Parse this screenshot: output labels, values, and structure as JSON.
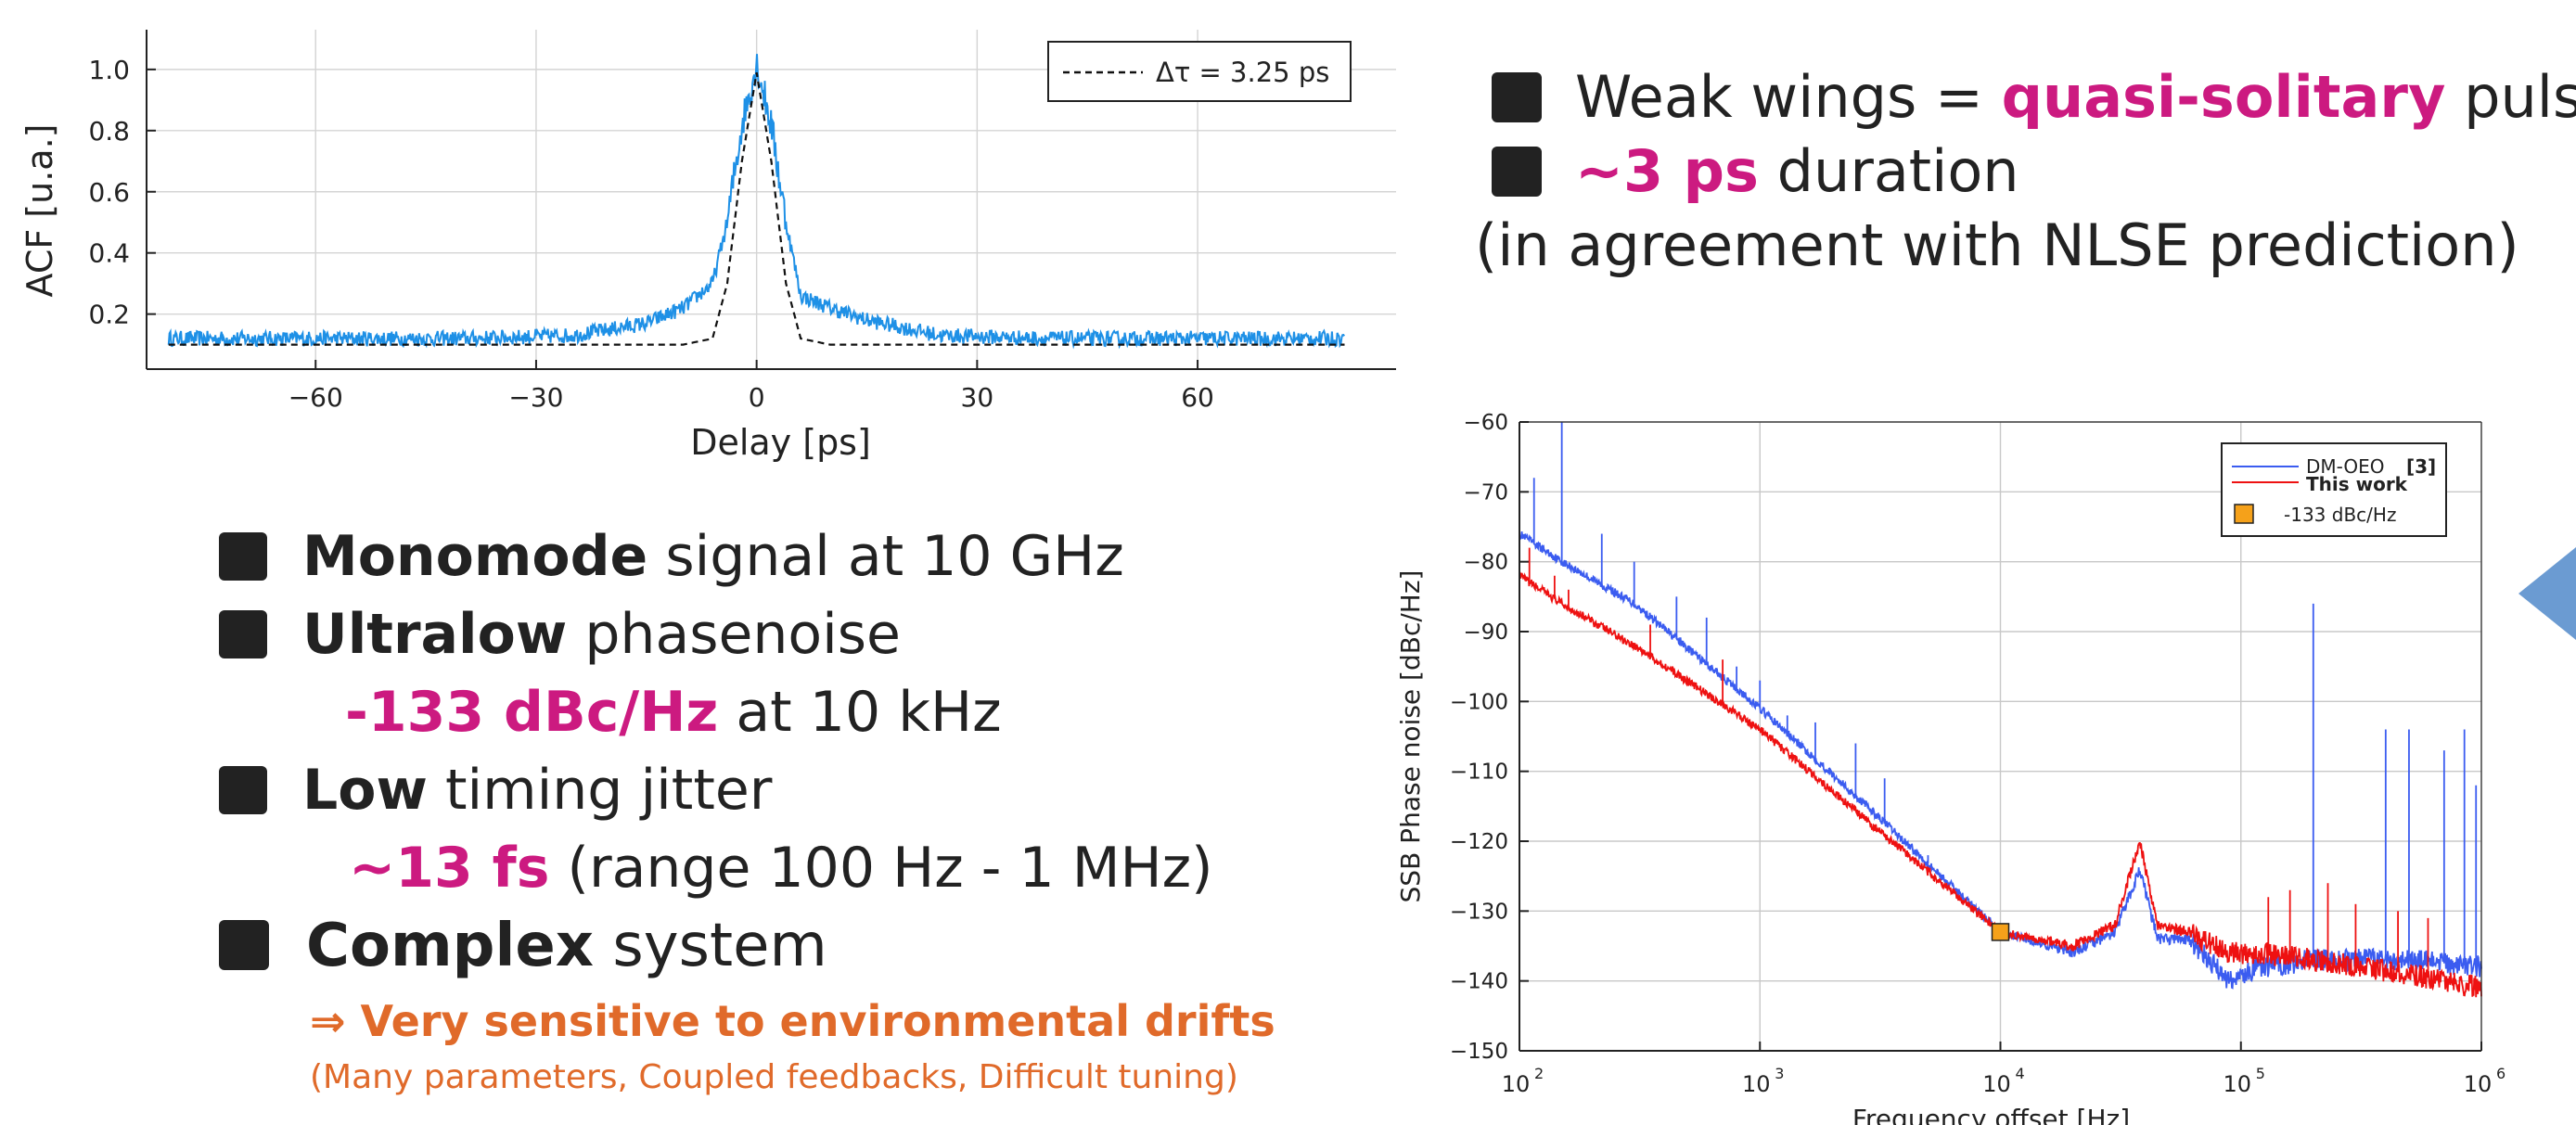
{
  "acf_legend": "Δτ = 3.25 ps",
  "pn_legend": {
    "dmoeo": "DM-OEO",
    "dmoeo_ref": "[3]",
    "thiswork": "This work",
    "marker": "-133 dBc/Hz"
  },
  "right_text": {
    "line1_pre": "Weak wings = ",
    "line1_hl": "quasi-solitary",
    "line1_post": " pulse",
    "line2_hl": "~3 ps",
    "line2_post": " duration",
    "line3": "(in agreement with NLSE prediction)"
  },
  "left_text": {
    "b1_bold": "Monomode",
    "b1_rest": " signal at 10 GHz",
    "b2_bold": "Ultralow",
    "b2_rest": " phasenoise",
    "b2_sub_hl": "-133 dBc/Hz",
    "b2_sub_rest": " at 10 kHz",
    "b3_bold": "Low",
    "b3_rest": " timing jitter",
    "b3_sub_hl": "~13 fs",
    "b3_sub_rest": " (range 100 Hz - 1 MHz)",
    "b4_bold": "Complex",
    "b4_rest": " system",
    "b4_sub1": "⇒ Very sensitive to environmental drifts",
    "b4_sub2": "(Many parameters, Coupled feedbacks, Difficult tuning)"
  },
  "colors": {
    "acf": "#1e90e6",
    "dmoeo": "#3b5cf0",
    "thiswork": "#ee1111",
    "marker": "#f5a11a",
    "highlight": "#cc1a80",
    "orange": "#e06a2a",
    "arrow": "#6b9bd2"
  },
  "chart_data": [
    {
      "type": "line",
      "xlabel": "Delay [ps]",
      "ylabel": "ACF [u.a.]",
      "xlim": [
        -83,
        87
      ],
      "ylim": [
        0.02,
        1.13
      ],
      "xticks": [
        -60,
        -30,
        0,
        30,
        60
      ],
      "xticklabels": [
        "−60",
        "−30",
        "0",
        "30",
        "60"
      ],
      "yticks": [
        0.2,
        0.4,
        0.6,
        0.8,
        1.0
      ],
      "yticklabels": [
        "0.2",
        "0.4",
        "0.6",
        "0.8",
        "1.0"
      ],
      "grid": true,
      "legend_position": "top-right",
      "series": [
        {
          "x": [
            -80,
            -60,
            -40,
            -25,
            -15,
            -10,
            -6,
            -4,
            -2,
            0,
            2,
            4,
            6,
            10,
            15,
            25,
            40,
            60,
            80
          ],
          "y": [
            0.12,
            0.12,
            0.12,
            0.13,
            0.17,
            0.22,
            0.3,
            0.5,
            0.82,
            1.02,
            0.82,
            0.5,
            0.26,
            0.22,
            0.18,
            0.13,
            0.12,
            0.12,
            0.12
          ]
        },
        {
          "name": "Δτ = 3.25 ps",
          "x": [
            -80,
            -10,
            -6,
            -4,
            -2,
            0,
            2,
            4,
            6,
            10,
            80
          ],
          "y": [
            0.1,
            0.1,
            0.12,
            0.3,
            0.7,
            0.99,
            0.7,
            0.3,
            0.12,
            0.1,
            0.1
          ]
        }
      ]
    },
    {
      "type": "line",
      "xlabel": "Frequency offset [Hz]",
      "ylabel": "SSB Phase noise [dBc/Hz]",
      "xscale": "log",
      "xlim": [
        100,
        1000000
      ],
      "ylim": [
        -150,
        -60
      ],
      "xticks": [
        100,
        1000,
        10000,
        100000,
        1000000
      ],
      "xticklabels_base": [
        "10",
        "10",
        "10",
        "10",
        "10"
      ],
      "xticklabels_exp": [
        "2",
        "3",
        "4",
        "5",
        "6"
      ],
      "yticks": [
        -60,
        -70,
        -80,
        -90,
        -100,
        -110,
        -120,
        -130,
        -140,
        -150
      ],
      "yticklabels": [
        "−60",
        "−70",
        "−80",
        "−90",
        "−100",
        "−110",
        "−120",
        "−130",
        "−140",
        "−150"
      ],
      "grid": true,
      "legend_position": "top-right",
      "series": [
        {
          "name": "DM-OEO [3]",
          "x": [
            100,
            150,
            300,
            1000,
            3000,
            10000,
            20000,
            30000,
            38000,
            45000,
            60000,
            90000,
            120000,
            200000,
            500000,
            1000000
          ],
          "y": [
            -76,
            -80,
            -86,
            -101,
            -116,
            -133,
            -136,
            -133,
            -124,
            -134,
            -134,
            -140,
            -138,
            -137,
            -137,
            -138
          ]
        },
        {
          "name": "This work",
          "x": [
            100,
            150,
            300,
            1000,
            3000,
            10000,
            20000,
            30000,
            38000,
            45000,
            60000,
            90000,
            120000,
            200000,
            500000,
            1000000
          ],
          "y": [
            -82,
            -86,
            -92,
            -104,
            -118,
            -133,
            -135,
            -132,
            -120,
            -132,
            -133,
            -136,
            -136,
            -137,
            -139,
            -141
          ]
        },
        {
          "name": "-133 dBc/Hz",
          "x": [
            10000
          ],
          "y": [
            -133
          ]
        }
      ]
    }
  ]
}
